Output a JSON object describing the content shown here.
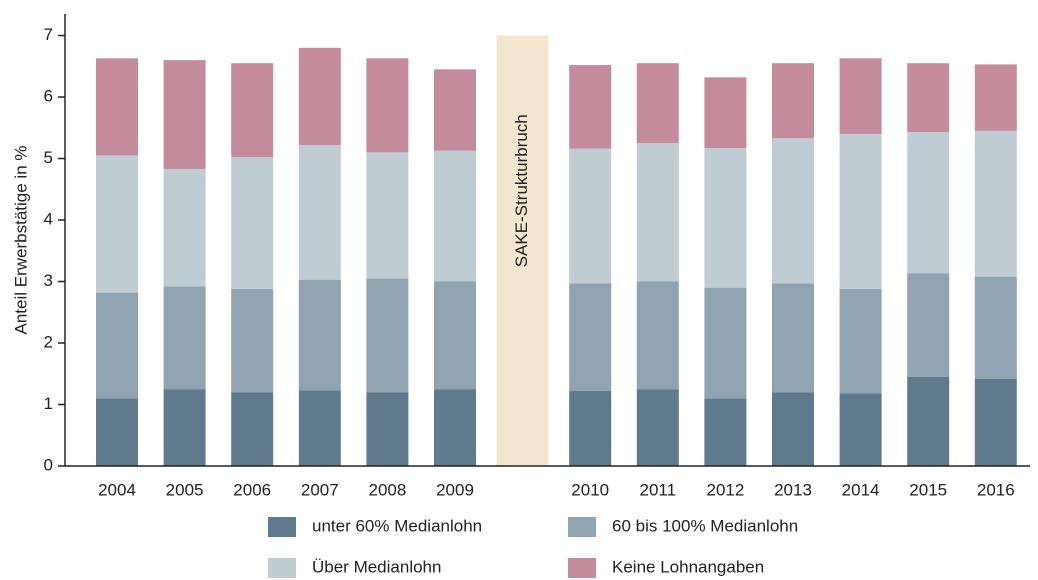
{
  "chart_data": {
    "type": "stacked_bar",
    "y_label": "Anteil Erwerbstätige in %",
    "annotation": "SAKE-Strukturbruch",
    "categories": [
      "2004",
      "2005",
      "2006",
      "2007",
      "2008",
      "2009",
      null,
      "2010",
      "2011",
      "2012",
      "2013",
      "2014",
      "2015",
      "2016"
    ],
    "series": [
      {
        "name": "unter 60% Medianlohn",
        "color": "#5e7a8c",
        "values": [
          1.1,
          1.25,
          1.2,
          1.23,
          1.2,
          1.25,
          null,
          1.22,
          1.25,
          1.1,
          1.2,
          1.18,
          1.45,
          1.42
        ]
      },
      {
        "name": "60 bis 100% Medianlohn",
        "color": "#8fa4b0",
        "values": [
          1.72,
          1.67,
          1.68,
          1.8,
          1.85,
          1.75,
          null,
          1.75,
          1.75,
          1.8,
          1.77,
          1.7,
          1.68,
          1.66
        ]
      },
      {
        "name": "Über Medianlohn",
        "color": "#c0ccd4",
        "values": [
          2.23,
          1.91,
          2.14,
          2.19,
          2.05,
          2.13,
          null,
          2.19,
          2.25,
          2.27,
          2.36,
          2.52,
          2.3,
          2.37
        ]
      },
      {
        "name": "Keine Lohnangaben",
        "color": "#c48b9c",
        "values": [
          1.58,
          1.77,
          1.53,
          1.58,
          1.53,
          1.32,
          null,
          1.36,
          1.3,
          1.15,
          1.22,
          1.23,
          1.12,
          1.08
        ]
      }
    ],
    "ylim": [
      0,
      7.35
    ],
    "yticks": [
      0,
      1,
      2,
      3,
      4,
      5,
      6,
      7
    ]
  }
}
